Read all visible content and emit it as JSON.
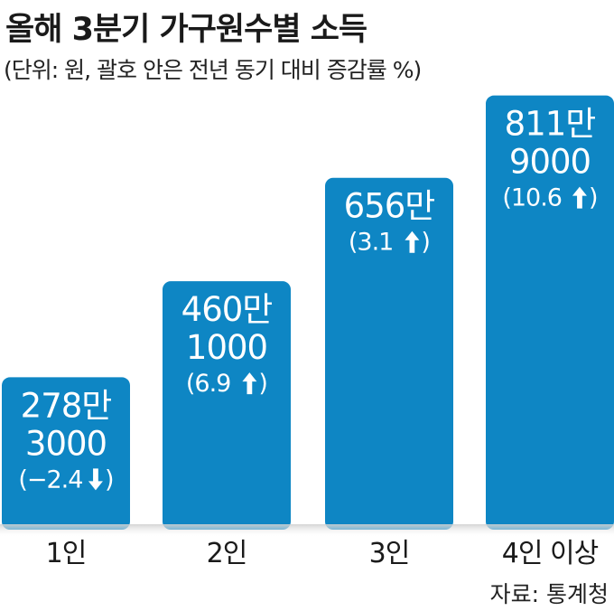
{
  "title": "올해 3분기 가구원수별 소득",
  "subtitle": "(단위: 원, 괄호 안은 전년 동기 대비 증감률 %)",
  "source": "자료: 통계청",
  "colors": {
    "bar": "#0e86c4",
    "text_on_bar": "#ffffff",
    "baseline": "#9a9a9a",
    "axis_text": "#1a1a1a"
  },
  "chart_data": {
    "type": "bar",
    "title": "올해 3분기 가구원수별 소득",
    "subtitle": "(단위: 원, 괄호 안은 전년 동기 대비 증감률 %)",
    "categories": [
      "1인",
      "2인",
      "3인",
      "4인 이상"
    ],
    "values": [
      2783000,
      4601000,
      6560000,
      8119000
    ],
    "value_labels": [
      [
        "278만",
        "3000"
      ],
      [
        "460만",
        "1000"
      ],
      [
        "656만"
      ],
      [
        "811만",
        "9000"
      ]
    ],
    "change_pct": [
      -2.4,
      6.9,
      3.1,
      10.6
    ],
    "change_labels": [
      "(−2.4",
      "(6.9",
      "(3.1",
      "(10.6"
    ],
    "change_direction": [
      "down",
      "up",
      "up",
      "up"
    ],
    "ylim": [
      0,
      8900000
    ],
    "grid": false,
    "legend": "none"
  }
}
